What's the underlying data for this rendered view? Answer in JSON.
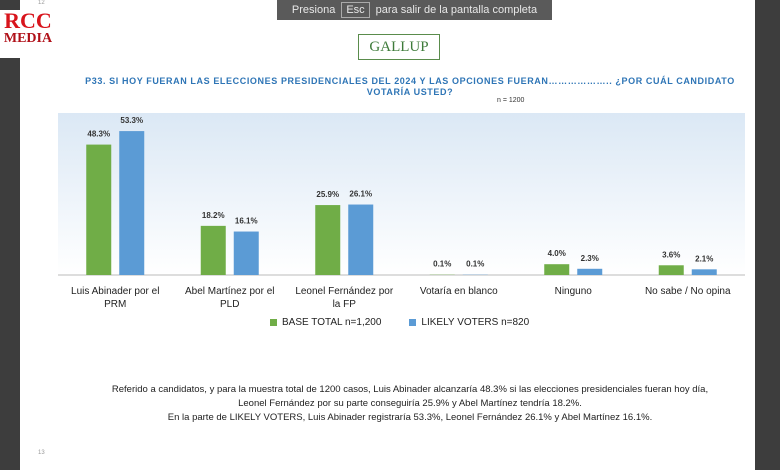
{
  "top_bar": {
    "before": "Presiona",
    "key": "Esc",
    "after": "para salir de la pantalla completa"
  },
  "logo": {
    "line1": "RCC",
    "line2": "MEDIA"
  },
  "brand": "GALLUP",
  "slide_numbers": [
    "12",
    "13"
  ],
  "chart_data": {
    "type": "bar",
    "title": "P33.  SI HOY FUERAN LAS ELECCIONES PRESIDENCIALES DEL 2024 Y LAS OPCIONES FUERAN……………….. ¿POR CUÁL CANDIDATO VOTARÍA USTED?",
    "subtitle": "n = 1200",
    "categories": [
      "Luis Abinader por el PRM",
      "Abel Martínez por el PLD",
      "Leonel Fernández por la FP",
      "Votaría en blanco",
      "Ninguno",
      "No sabe / No opina"
    ],
    "series": [
      {
        "name": "BASE TOTAL n=1,200",
        "color": "#70ad47",
        "values": [
          48.3,
          18.2,
          25.9,
          0.1,
          4.0,
          3.6
        ],
        "value_labels": [
          "48.3%",
          "18.2%",
          "25.9%",
          "0.1%",
          "4.0%",
          "3.6%"
        ]
      },
      {
        "name": "LIKELY VOTERS n=820",
        "color": "#5b9bd5",
        "values": [
          53.3,
          16.1,
          26.1,
          0.1,
          2.3,
          2.1
        ],
        "value_labels": [
          "53.3%",
          "16.1%",
          "26.1%",
          "0.1%",
          "2.3%",
          "2.1%"
        ]
      }
    ],
    "ylim": [
      0,
      60
    ],
    "legend": "bottom"
  },
  "footer": [
    "Referido a candidatos, y para la muestra total de 1200 casos, Luis Abinader alcanzaría 48.3% si las elecciones presidenciales fueran hoy día,",
    "Leonel Fernández por su parte conseguiría 25.9% y Abel Martínez tendría 18.2%.",
    "En la parte de LIKELY VOTERS, Luis Abinader registraría 53.3%, Leonel Fernández 26.1% y Abel Martínez 16.1%."
  ]
}
